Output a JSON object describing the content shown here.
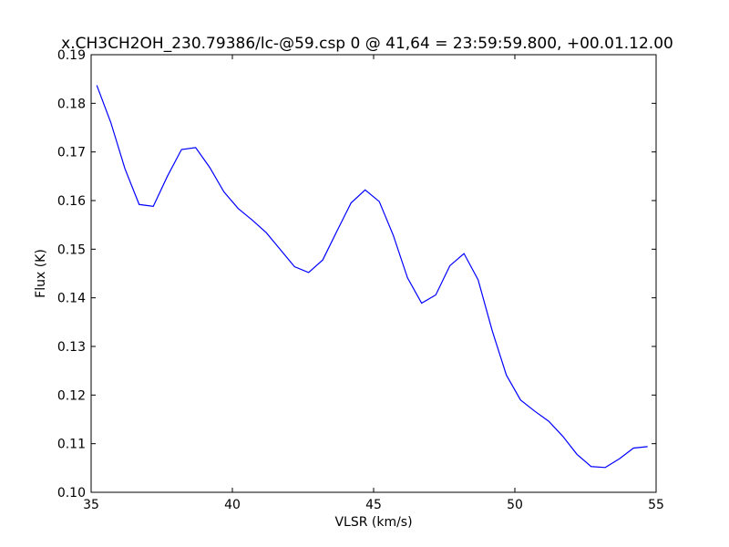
{
  "chart_data": {
    "type": "line",
    "title": "x.CH3CH2OH_230.79386/lc-@59.csp 0 @ 41,64 = 23:59:59.800, +00.01.12.00",
    "xlabel": "VLSR (km/s)",
    "ylabel": "Flux (K)",
    "xlim": [
      35,
      55
    ],
    "ylim": [
      0.1,
      0.19
    ],
    "xticks": [
      "35",
      "40",
      "45",
      "50",
      "55"
    ],
    "yticks": [
      "0.10",
      "0.11",
      "0.12",
      "0.13",
      "0.14",
      "0.15",
      "0.16",
      "0.17",
      "0.18",
      "0.19"
    ],
    "grid": false,
    "line_color": "#0000ff",
    "series": [
      {
        "x": [
          35.2,
          35.7,
          36.2,
          36.7,
          37.2,
          37.7,
          38.2,
          38.7,
          39.2,
          39.7,
          40.2,
          40.7,
          41.2,
          41.7,
          42.2,
          42.7,
          43.2,
          43.7,
          44.2,
          44.7,
          45.2,
          45.7,
          46.2,
          46.7,
          47.2,
          47.7,
          48.2,
          48.7,
          49.2,
          49.7,
          50.2,
          50.7,
          51.2,
          51.7,
          52.2,
          52.7,
          53.2,
          53.7,
          54.2,
          54.7
        ],
        "y": [
          0.1837,
          0.176,
          0.1665,
          0.1592,
          0.1588,
          0.165,
          0.1705,
          0.1709,
          0.1668,
          0.1618,
          0.1584,
          0.156,
          0.1534,
          0.1499,
          0.1464,
          0.1452,
          0.1478,
          0.1537,
          0.1595,
          0.1622,
          0.1598,
          0.1528,
          0.1441,
          0.1389,
          0.1406,
          0.1466,
          0.1491,
          0.1437,
          0.1332,
          0.1241,
          0.119,
          0.1167,
          0.1146,
          0.1115,
          0.1078,
          0.1053,
          0.1051,
          0.1069,
          0.1091,
          0.1094
        ]
      }
    ]
  }
}
